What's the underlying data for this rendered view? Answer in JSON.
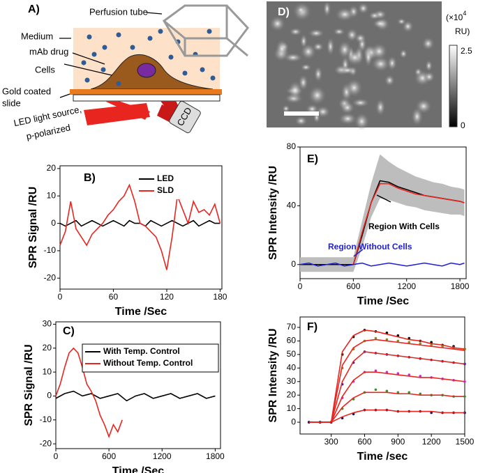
{
  "diagram": {
    "label": "A)",
    "perfusion": "Perfusion tube",
    "medium": "Medium",
    "drug": "mAb drug",
    "cells": "Cells",
    "slide_1": "Gold coated",
    "slide_2": "slide",
    "light_1": "LED light source,",
    "light_2": "p-polarized",
    "detector": "CCD"
  },
  "image": {
    "label": "D)",
    "unit_prefix": "(×10",
    "unit_exponent": "4",
    "unit_suffix": "RU)",
    "colorbar_max": "2.5",
    "colorbar_min": "0"
  },
  "chart_data": [
    {
      "type": "line",
      "label": "B)",
      "xlabel": "Time /Sec",
      "ylabel": "SPR Signal /RU",
      "xlim": [
        0,
        182
      ],
      "ylim": [
        -24,
        21
      ],
      "xticks": [
        0,
        60,
        120,
        180
      ],
      "yticks": [
        -20,
        -10,
        0,
        10,
        20
      ],
      "legend": "top-right",
      "x": [
        0,
        6,
        12,
        18,
        24,
        30,
        36,
        42,
        48,
        54,
        60,
        66,
        72,
        78,
        84,
        90,
        96,
        102,
        108,
        114,
        120,
        126,
        132,
        138,
        144,
        150,
        156,
        162,
        168,
        174,
        180
      ],
      "series": [
        {
          "name": "LED",
          "color": "#000000",
          "values": [
            0,
            -1,
            0,
            1,
            -1,
            0,
            1,
            0,
            -1,
            0,
            1,
            0,
            -1,
            1,
            0,
            0,
            -1,
            1,
            0,
            -1,
            0,
            1,
            0,
            -1,
            0,
            1,
            -1,
            0,
            1,
            0,
            0
          ]
        },
        {
          "name": "SLD",
          "color": "#e8251f",
          "values": [
            -8,
            -3,
            8,
            -2,
            -5,
            -8,
            -4,
            -2,
            0,
            3,
            5,
            8,
            10,
            14,
            8,
            0,
            -1,
            -3,
            -5,
            -10,
            -17,
            -5,
            10,
            5,
            0,
            8,
            4,
            5,
            3,
            7,
            0
          ]
        }
      ]
    },
    {
      "type": "line",
      "label": "C)",
      "xlabel": "Time /Sec",
      "ylabel": "SPR Signal /RU",
      "xlim": [
        0,
        1860
      ],
      "ylim": [
        -22,
        31
      ],
      "xticks": [
        0,
        600,
        1200,
        1800
      ],
      "yticks": [
        -20,
        -10,
        0,
        10,
        20,
        30
      ],
      "legend": "top-left",
      "series": [
        {
          "name": "With Temp. Control",
          "color": "#000000",
          "x": [
            0,
            100,
            200,
            300,
            400,
            500,
            600,
            700,
            800,
            900,
            1000,
            1100,
            1200,
            1300,
            1400,
            1500,
            1600,
            1700,
            1800
          ],
          "values": [
            -1,
            1,
            2,
            0,
            1,
            -1,
            0,
            1,
            -2,
            0,
            1,
            -1,
            0,
            1,
            -1,
            0,
            1,
            -1,
            0
          ]
        },
        {
          "name": "Without Temp. Control",
          "color": "#e8251f",
          "x": [
            0,
            50,
            100,
            150,
            200,
            250,
            300,
            350,
            400,
            450,
            500,
            550,
            600,
            650,
            700,
            750
          ],
          "values": [
            0,
            5,
            12,
            18,
            20,
            18,
            12,
            5,
            2,
            -2,
            -8,
            -12,
            -17,
            -12,
            -15,
            -10
          ]
        }
      ]
    },
    {
      "type": "line",
      "label": "E)",
      "xlabel": "Time /Sec",
      "ylabel": "SPR Intensity /RU",
      "xlim": [
        0,
        1870
      ],
      "ylim": [
        -9.6,
        80
      ],
      "xticks": [
        0,
        600,
        1200,
        1800
      ],
      "yticks": [
        0,
        40,
        80
      ],
      "x": [
        0,
        100,
        200,
        300,
        400,
        500,
        600,
        700,
        800,
        900,
        1000,
        1100,
        1200,
        1300,
        1400,
        1500,
        1600,
        1700,
        1800,
        1850
      ],
      "band": {
        "color": "#bdbdbd",
        "lower": [
          -5,
          -5,
          -5,
          -5,
          -5,
          -5,
          -5,
          12,
          32,
          45,
          44,
          42,
          40,
          39,
          37,
          36,
          35,
          34,
          34,
          33
        ],
        "upper": [
          5,
          5,
          5,
          5,
          5,
          5,
          5,
          30,
          55,
          75,
          70,
          66,
          63,
          60,
          58,
          56,
          55,
          53,
          52,
          51
        ]
      },
      "annotations": [
        {
          "text": "Region With Cells",
          "color": "#000000"
        },
        {
          "text": "Region Without Cells",
          "color": "#1f1fd6"
        }
      ],
      "series": [
        {
          "color": "#000000",
          "values": [
            0,
            0,
            0,
            0,
            0,
            0,
            0,
            20,
            42,
            57,
            56,
            53,
            51,
            49,
            47,
            46,
            45,
            44,
            43,
            42
          ]
        },
        {
          "color": "#e8251f",
          "x": [
            600,
            700,
            800,
            900,
            1000,
            1100,
            1200,
            1300,
            1400,
            1500,
            1600,
            1700,
            1800,
            1850
          ],
          "values": [
            0,
            22,
            42,
            55,
            55,
            52,
            50,
            48,
            47,
            46,
            45,
            44,
            43,
            42
          ]
        },
        {
          "color": "#1f1fd6",
          "values": [
            0,
            1,
            -1,
            0,
            1,
            -1,
            0,
            1,
            -1,
            0,
            1,
            0,
            -1,
            0,
            1,
            0,
            -1,
            1,
            0,
            1
          ]
        }
      ]
    },
    {
      "type": "line",
      "label": "F)",
      "xlabel": "Time /sec",
      "ylabel": "SPR Intensity /RU",
      "xlim": [
        20,
        1500
      ],
      "ylim": [
        -8.7,
        77.7
      ],
      "xticks": [
        300,
        600,
        900,
        1200,
        1500
      ],
      "yticks": [
        0,
        10,
        20,
        30,
        40,
        50,
        60,
        70
      ],
      "x": [
        100,
        200,
        300,
        400,
        500,
        600,
        700,
        800,
        900,
        1000,
        1100,
        1200,
        1300,
        1400,
        1500
      ],
      "series": [
        {
          "color": "#000000",
          "marker": true,
          "values": [
            0,
            0,
            0,
            50,
            63,
            68,
            67,
            66,
            64,
            62,
            60,
            59,
            57,
            56,
            54
          ]
        },
        {
          "color": "#8a8a10",
          "marker": true,
          "values": [
            0,
            0,
            0,
            40,
            54,
            60,
            62,
            61,
            60,
            59,
            58,
            57,
            56,
            55,
            54
          ]
        },
        {
          "color": "#1f1fd6",
          "marker": true,
          "values": [
            0,
            0,
            0,
            28,
            44,
            52,
            51,
            50,
            49,
            48,
            47,
            46,
            45,
            44,
            43
          ]
        },
        {
          "color": "#e020d0",
          "marker": true,
          "values": [
            0,
            0,
            0,
            18,
            30,
            37,
            38,
            37,
            36,
            35,
            34,
            33,
            32,
            31,
            30
          ]
        },
        {
          "color": "#2a9a20",
          "marker": true,
          "values": [
            0,
            0,
            0,
            10,
            17,
            22,
            24,
            23,
            22,
            22,
            21,
            20,
            20,
            19,
            19
          ]
        },
        {
          "color": "#10107a",
          "marker": true,
          "values": [
            0,
            0,
            0,
            3,
            6,
            9,
            9,
            9,
            8,
            8,
            8,
            7,
            7,
            7,
            7
          ]
        },
        {
          "color": "#e8251f",
          "values": [
            0,
            0,
            0,
            52,
            64,
            68,
            67,
            65,
            63,
            61,
            60,
            58,
            57,
            55,
            54
          ]
        },
        {
          "color": "#e8251f",
          "values": [
            0,
            0,
            0,
            42,
            55,
            60,
            61,
            60,
            59,
            58,
            57,
            56,
            55,
            54,
            53
          ]
        },
        {
          "color": "#e8251f",
          "values": [
            0,
            0,
            0,
            30,
            45,
            52,
            51,
            50,
            49,
            48,
            47,
            46,
            45,
            44,
            43
          ]
        },
        {
          "color": "#e8251f",
          "values": [
            0,
            0,
            0,
            19,
            31,
            37,
            37,
            36,
            35,
            34,
            33,
            33,
            32,
            31,
            30
          ]
        },
        {
          "color": "#e8251f",
          "values": [
            0,
            0,
            0,
            11,
            18,
            22,
            22,
            22,
            21,
            21,
            20,
            20,
            20,
            19,
            19
          ]
        },
        {
          "color": "#e8251f",
          "values": [
            0,
            0,
            0,
            4,
            7,
            9,
            9,
            9,
            8,
            8,
            8,
            8,
            7,
            7,
            7
          ]
        }
      ]
    }
  ]
}
